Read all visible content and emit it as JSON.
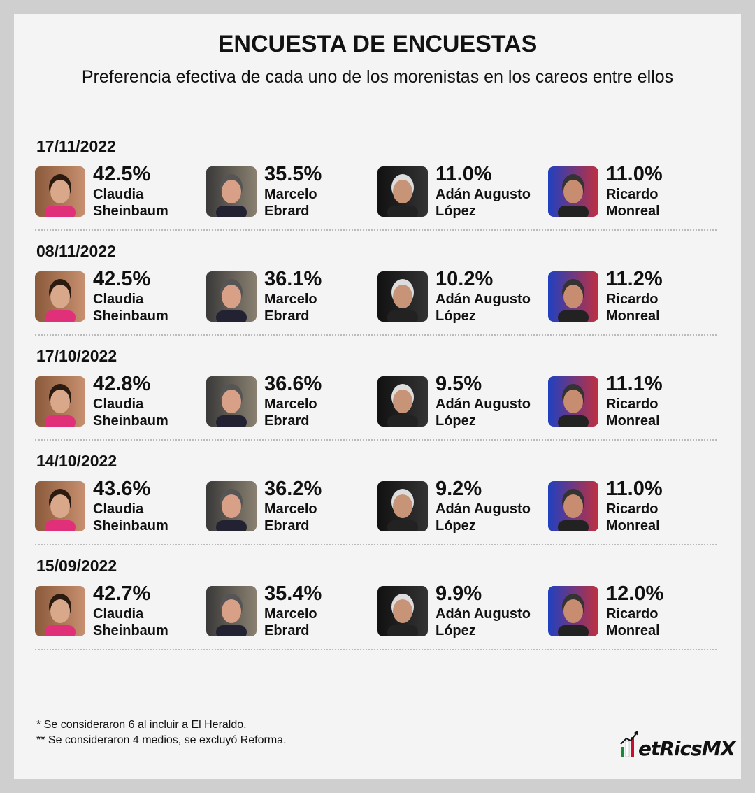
{
  "header": {
    "title": "ENCUESTA DE ENCUESTAS",
    "subtitle": "Preferencia efectiva de cada uno de los morenistas en los careos entre ellos"
  },
  "polls": [
    {
      "date": "17/11/2022",
      "candidates": [
        {
          "pct": "42.5%",
          "name": [
            "Claudia",
            "Sheinbaum"
          ]
        },
        {
          "pct": "35.5%",
          "name": [
            "Marcelo",
            "Ebrard"
          ]
        },
        {
          "pct": "11.0%",
          "name": [
            "Adán Augusto",
            "López"
          ]
        },
        {
          "pct": "11.0%",
          "name": [
            "Ricardo",
            "Monreal"
          ]
        }
      ]
    },
    {
      "date": "08/11/2022",
      "candidates": [
        {
          "pct": "42.5%",
          "name": [
            "Claudia",
            "Sheinbaum"
          ]
        },
        {
          "pct": "36.1%",
          "name": [
            "Marcelo",
            "Ebrard"
          ]
        },
        {
          "pct": "10.2%",
          "name": [
            "Adán Augusto",
            "López"
          ]
        },
        {
          "pct": "11.2%",
          "name": [
            "Ricardo",
            "Monreal"
          ]
        }
      ]
    },
    {
      "date": "17/10/2022",
      "candidates": [
        {
          "pct": "42.8%",
          "name": [
            "Claudia",
            "Sheinbaum"
          ]
        },
        {
          "pct": "36.6%",
          "name": [
            "Marcelo",
            "Ebrard"
          ]
        },
        {
          "pct": "9.5%",
          "name": [
            "Adán Augusto",
            "López"
          ]
        },
        {
          "pct": "11.1%",
          "name": [
            "Ricardo",
            "Monreal"
          ]
        }
      ]
    },
    {
      "date": "14/10/2022",
      "candidates": [
        {
          "pct": "43.6%",
          "name": [
            "Claudia",
            "Sheinbaum"
          ]
        },
        {
          "pct": "36.2%",
          "name": [
            "Marcelo",
            "Ebrard"
          ]
        },
        {
          "pct": "9.2%",
          "name": [
            "Adán Augusto",
            "López"
          ]
        },
        {
          "pct": "11.0%",
          "name": [
            "Ricardo",
            "Monreal"
          ]
        }
      ]
    },
    {
      "date": "15/09/2022",
      "candidates": [
        {
          "pct": "42.7%",
          "name": [
            "Claudia",
            "Sheinbaum"
          ]
        },
        {
          "pct": "35.4%",
          "name": [
            "Marcelo",
            "Ebrard"
          ]
        },
        {
          "pct": "9.9%",
          "name": [
            "Adán Augusto",
            "López"
          ]
        },
        {
          "pct": "12.0%",
          "name": [
            "Ricardo",
            "Monreal"
          ]
        }
      ]
    }
  ],
  "footnotes": [
    "* Se consideraron 6 al incluir a El Heraldo.",
    "** Se consideraron 4 medios, se excluyó Reforma."
  ],
  "logo": "etRicsMX"
}
